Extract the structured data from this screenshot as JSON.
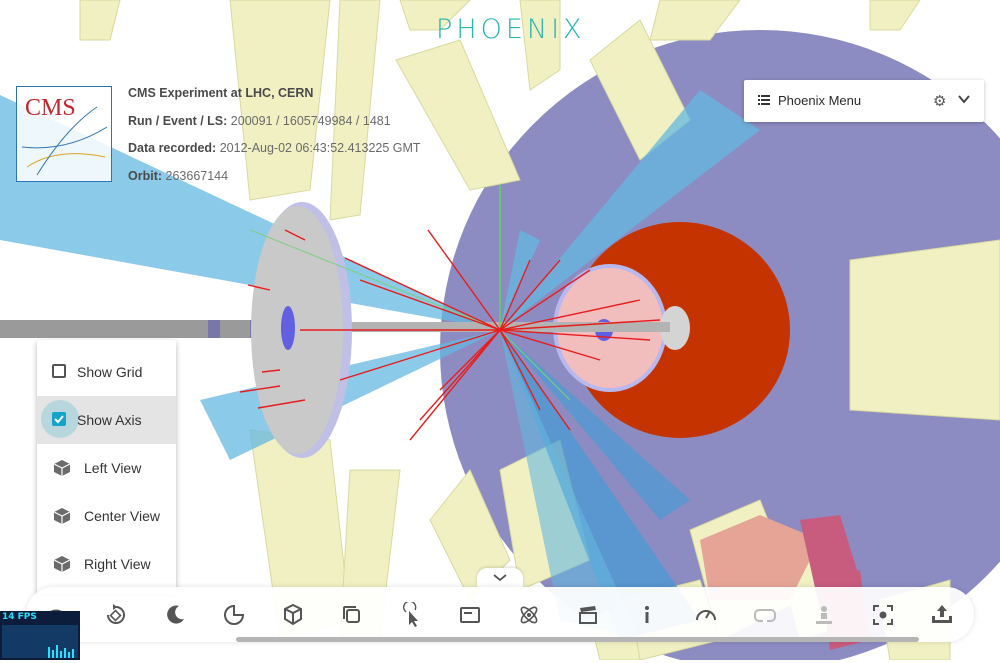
{
  "app": {
    "logo_text": "PHOENIX"
  },
  "experiment": {
    "logo_text": "CMS",
    "title": "CMS Experiment at LHC, CERN",
    "run_label": "Run / Event / LS:",
    "run_value": "200091 / 1605749984 / 1481",
    "recorded_label": "Data recorded:",
    "recorded_value": "2012-Aug-02 06:43:52.413225 GMT",
    "orbit_label": "Orbit:",
    "orbit_value": "263667144"
  },
  "menu": {
    "title": "Phoenix Menu",
    "icons": [
      "list-icon",
      "gear-icon",
      "chevron-down-icon"
    ]
  },
  "view_options": {
    "items": [
      {
        "label": "Show Grid",
        "type": "checkbox",
        "checked": false
      },
      {
        "label": "Show Axis",
        "type": "checkbox",
        "checked": true
      },
      {
        "label": "Left View",
        "type": "view",
        "icon": "cube-icon"
      },
      {
        "label": "Center View",
        "type": "view",
        "icon": "cube-icon"
      },
      {
        "label": "Right View",
        "type": "view",
        "icon": "cube-icon"
      }
    ]
  },
  "toolbar": {
    "buttons": [
      "eye-icon",
      "rotate-icon",
      "dark-mode-icon",
      "cut-icon",
      "geometry-cube-icon",
      "clone-icon",
      "select-pointer-icon",
      "info-panel-icon",
      "atom-icon",
      "clapperboard-icon",
      "info-icon",
      "performance-gauge-icon",
      "vr-headset-icon",
      "ar-icon",
      "screenshot-icon",
      "share-icon"
    ],
    "disabled": [
      "vr-headset-icon",
      "ar-icon"
    ]
  },
  "stats": {
    "fps_text": "14 FPS"
  },
  "colors": {
    "accent": "#17a2c8",
    "track": "#e81c1c",
    "hcal": "#c53300",
    "yoke": "#8c8cc2",
    "muon": "#f0f0c2",
    "endcap": "#c9c9c9"
  }
}
